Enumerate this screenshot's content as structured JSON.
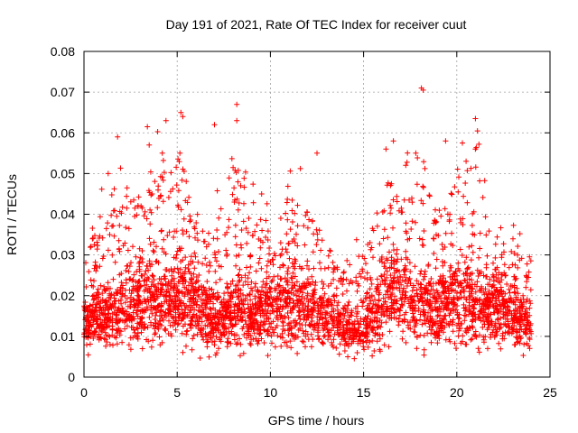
{
  "chart_data": {
    "type": "scatter",
    "title": "Day 191 of 2021, Rate Of TEC Index for receiver cuut",
    "xlabel": "GPS time / hours",
    "ylabel": "ROTI / TECUs",
    "xlim": [
      0,
      25
    ],
    "ylim": [
      0,
      0.08
    ],
    "x_ticks": [
      0,
      5,
      10,
      15,
      20,
      25
    ],
    "x_tick_labels": [
      "0",
      "5",
      "10",
      "15",
      "20",
      "25"
    ],
    "y_ticks": [
      0,
      0.01,
      0.02,
      0.03,
      0.04,
      0.05,
      0.06,
      0.07,
      0.08
    ],
    "y_tick_labels": [
      "0",
      "0.01",
      "0.02",
      "0.03",
      "0.04",
      "0.05",
      "0.06",
      "0.07",
      "0.08"
    ],
    "grid": true,
    "marker": "+",
    "color": "#ff0000",
    "series": [
      {
        "name": "ROTI",
        "description": "dense cloud of ROTI samples from 0 to 24 h; bulk 0.005-0.02 TECU/s, frequent spikes to 0.03-0.05",
        "notable_points": [
          {
            "x": 1.8,
            "y": 0.059
          },
          {
            "x": 3.4,
            "y": 0.0615
          },
          {
            "x": 4.4,
            "y": 0.063
          },
          {
            "x": 5.2,
            "y": 0.065
          },
          {
            "x": 5.3,
            "y": 0.064
          },
          {
            "x": 7.0,
            "y": 0.062
          },
          {
            "x": 8.2,
            "y": 0.067
          },
          {
            "x": 8.2,
            "y": 0.063
          },
          {
            "x": 16.6,
            "y": 0.058
          },
          {
            "x": 18.1,
            "y": 0.071
          },
          {
            "x": 18.2,
            "y": 0.0705
          },
          {
            "x": 19.4,
            "y": 0.058
          },
          {
            "x": 20.3,
            "y": 0.0575
          },
          {
            "x": 21.0,
            "y": 0.0635
          },
          {
            "x": 21.0,
            "y": 0.056
          },
          {
            "x": 1.3,
            "y": 0.05
          },
          {
            "x": 3.5,
            "y": 0.057
          },
          {
            "x": 4.2,
            "y": 0.055
          },
          {
            "x": 12.5,
            "y": 0.055
          },
          {
            "x": 16.2,
            "y": 0.056
          },
          {
            "x": 17.8,
            "y": 0.055
          },
          {
            "x": 20.5,
            "y": 0.053
          }
        ],
        "envelope": [
          {
            "x": 0.0,
            "lo": 0.005,
            "hi": 0.021,
            "peak": 0.032
          },
          {
            "x": 1.0,
            "lo": 0.004,
            "hi": 0.024,
            "peak": 0.05
          },
          {
            "x": 2.0,
            "lo": 0.003,
            "hi": 0.028,
            "peak": 0.059
          },
          {
            "x": 3.0,
            "lo": 0.003,
            "hi": 0.03,
            "peak": 0.048
          },
          {
            "x": 3.5,
            "lo": 0.004,
            "hi": 0.034,
            "peak": 0.0615
          },
          {
            "x": 4.5,
            "lo": 0.004,
            "hi": 0.032,
            "peak": 0.063
          },
          {
            "x": 5.3,
            "lo": 0.003,
            "hi": 0.034,
            "peak": 0.065
          },
          {
            "x": 6.0,
            "lo": 0.003,
            "hi": 0.03,
            "peak": 0.04
          },
          {
            "x": 7.0,
            "lo": 0.003,
            "hi": 0.022,
            "peak": 0.046
          },
          {
            "x": 8.2,
            "lo": 0.003,
            "hi": 0.03,
            "peak": 0.067
          },
          {
            "x": 9.0,
            "lo": 0.004,
            "hi": 0.026,
            "peak": 0.051
          },
          {
            "x": 10.0,
            "lo": 0.004,
            "hi": 0.03,
            "peak": 0.045
          },
          {
            "x": 11.0,
            "lo": 0.004,
            "hi": 0.031,
            "peak": 0.055
          },
          {
            "x": 12.0,
            "lo": 0.004,
            "hi": 0.028,
            "peak": 0.053
          },
          {
            "x": 13.0,
            "lo": 0.004,
            "hi": 0.024,
            "peak": 0.035
          },
          {
            "x": 14.0,
            "lo": 0.003,
            "hi": 0.02,
            "peak": 0.03
          },
          {
            "x": 15.0,
            "lo": 0.003,
            "hi": 0.018,
            "peak": 0.038
          },
          {
            "x": 16.0,
            "lo": 0.004,
            "hi": 0.033,
            "peak": 0.056
          },
          {
            "x": 16.6,
            "lo": 0.004,
            "hi": 0.036,
            "peak": 0.058
          },
          {
            "x": 17.5,
            "lo": 0.004,
            "hi": 0.032,
            "peak": 0.055
          },
          {
            "x": 18.1,
            "lo": 0.004,
            "hi": 0.03,
            "peak": 0.071
          },
          {
            "x": 19.0,
            "lo": 0.004,
            "hi": 0.028,
            "peak": 0.045
          },
          {
            "x": 20.0,
            "lo": 0.004,
            "hi": 0.032,
            "peak": 0.0575
          },
          {
            "x": 21.0,
            "lo": 0.004,
            "hi": 0.03,
            "peak": 0.0635
          },
          {
            "x": 22.0,
            "lo": 0.004,
            "hi": 0.028,
            "peak": 0.04
          },
          {
            "x": 23.0,
            "lo": 0.004,
            "hi": 0.027,
            "peak": 0.04
          },
          {
            "x": 24.0,
            "lo": 0.004,
            "hi": 0.02,
            "peak": 0.03
          }
        ]
      }
    ]
  }
}
